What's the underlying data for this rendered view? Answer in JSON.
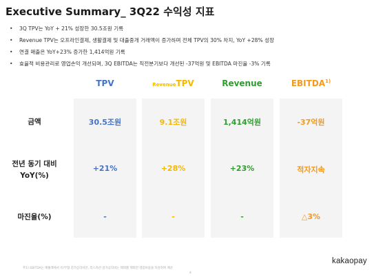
{
  "title": "Executive Summary_ 3Q22 수익성 지표",
  "bullets": [
    "3Q TPV는 YoY + 21% 성장한 30.5조원 기록",
    "Revenue TPV는 오프라인결제, 생활결제 및 대출중개 거래액이 증가하며 전체 TPV의 30% 차지, YoY +28% 성장",
    "연결 매출은 YoY+23% 증가한 1,414억원 기록",
    "효율적 비용관리로 영업손익 개선되며, 3Q EBITDA는 직전분기보다 개선된 -37억원 및 EBITDA 마진율 -3% 기록"
  ],
  "columns": {
    "tpv": "TPV",
    "revenue_tpv_prefix": "Revenue",
    "revenue_tpv_main": "TPV",
    "revenue": "Revenue",
    "ebitda": "EBITDA",
    "ebitda_sup": "1)"
  },
  "rows": {
    "amount_label": "금액",
    "yoy_label_line1": "전년 동기 대비",
    "yoy_label_line2": "YoY(%)",
    "margin_label": "마진율(%)"
  },
  "values": {
    "amount": {
      "tpv": "30.5조원",
      "revenue_tpv": "9.1조원",
      "revenue": "1,414억원",
      "ebitda": "-37억원"
    },
    "yoy": {
      "tpv": "+21%",
      "revenue_tpv": "+28%",
      "revenue": "+23%",
      "ebitda": "적자지속"
    },
    "margin": {
      "tpv": "-",
      "revenue_tpv": "-",
      "revenue": "-",
      "ebitda": "△3%"
    }
  },
  "colors": {
    "tpv": "#4472c4",
    "revenue_tpv": "#f5b800",
    "revenue": "#2e9e2e",
    "ebitda": "#f39a1e"
  },
  "footnote": "주1) EBITDA는 매출액에서 유/무형 감가상각비만, 리스자산 감가상각비는 제외를 제외한 영업비용을 차감하여 계산",
  "page_number": "4",
  "logo": "kakaopay"
}
